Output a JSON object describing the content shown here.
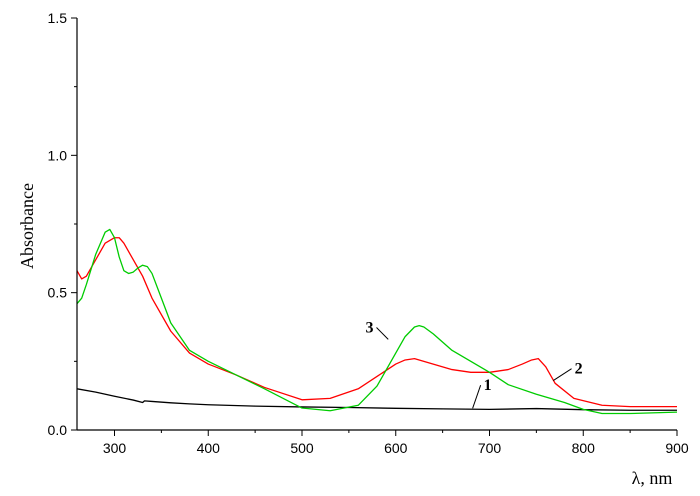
{
  "chart_data": {
    "type": "line",
    "title": "",
    "xlabel": "λ, nm",
    "ylabel": "Absorbance",
    "xlim": [
      260,
      900
    ],
    "ylim": [
      0.0,
      1.5
    ],
    "x_ticks": [
      300,
      400,
      500,
      600,
      700,
      800,
      900
    ],
    "x_tick_labels": [
      "300",
      "400",
      "500",
      "600",
      "700",
      "800",
      "900"
    ],
    "y_ticks": [
      0.0,
      0.5,
      1.0,
      1.5
    ],
    "y_tick_labels": [
      "0.0",
      "0.5",
      "1.0",
      "1.5"
    ],
    "grid": false,
    "legend": "none",
    "colors": {
      "axes": "#000000",
      "series_1": "#000000",
      "series_2": "#ff0000",
      "series_3": "#00cc00"
    },
    "series": [
      {
        "name": "1",
        "color": "#000000",
        "x": [
          260,
          280,
          300,
          320,
          330,
          332,
          340,
          360,
          380,
          400,
          450,
          500,
          550,
          600,
          650,
          700,
          750,
          800,
          850,
          900
        ],
        "y": [
          0.15,
          0.138,
          0.123,
          0.109,
          0.1,
          0.106,
          0.104,
          0.099,
          0.095,
          0.092,
          0.087,
          0.084,
          0.082,
          0.079,
          0.077,
          0.075,
          0.078,
          0.074,
          0.072,
          0.072
        ]
      },
      {
        "name": "2",
        "color": "#ff0000",
        "x": [
          260,
          265,
          270,
          280,
          290,
          300,
          305,
          310,
          320,
          330,
          340,
          360,
          380,
          400,
          430,
          460,
          500,
          530,
          560,
          580,
          600,
          610,
          620,
          640,
          660,
          680,
          700,
          720,
          735,
          745,
          752,
          760,
          770,
          790,
          820,
          850,
          900
        ],
        "y": [
          0.58,
          0.55,
          0.56,
          0.62,
          0.68,
          0.7,
          0.7,
          0.68,
          0.62,
          0.56,
          0.48,
          0.36,
          0.28,
          0.24,
          0.2,
          0.155,
          0.11,
          0.115,
          0.15,
          0.195,
          0.24,
          0.255,
          0.26,
          0.24,
          0.22,
          0.21,
          0.21,
          0.22,
          0.24,
          0.255,
          0.26,
          0.23,
          0.17,
          0.115,
          0.09,
          0.085,
          0.085
        ]
      },
      {
        "name": "3",
        "color": "#00cc00",
        "x": [
          260,
          265,
          270,
          280,
          290,
          295,
          300,
          305,
          310,
          315,
          320,
          325,
          330,
          335,
          340,
          350,
          360,
          380,
          400,
          430,
          460,
          500,
          530,
          560,
          580,
          600,
          610,
          620,
          625,
          630,
          640,
          660,
          680,
          700,
          720,
          750,
          780,
          800,
          820,
          850,
          900
        ],
        "y": [
          0.46,
          0.48,
          0.53,
          0.64,
          0.72,
          0.73,
          0.7,
          0.63,
          0.58,
          0.57,
          0.575,
          0.59,
          0.6,
          0.595,
          0.57,
          0.48,
          0.39,
          0.29,
          0.25,
          0.2,
          0.15,
          0.08,
          0.07,
          0.09,
          0.16,
          0.28,
          0.34,
          0.375,
          0.38,
          0.375,
          0.35,
          0.29,
          0.25,
          0.21,
          0.165,
          0.13,
          0.1,
          0.075,
          0.06,
          0.06,
          0.065
        ]
      }
    ],
    "annotations": [
      {
        "text": "1",
        "series": 0,
        "text_x": 698,
        "text_y": 0.145,
        "point_x": 682,
        "point_y": 0.079
      },
      {
        "text": "2",
        "series": 1,
        "text_x": 795,
        "text_y": 0.205,
        "point_x": 768,
        "point_y": 0.18
      },
      {
        "text": "3",
        "series": 2,
        "text_x": 572,
        "text_y": 0.355,
        "point_x": 592,
        "point_y": 0.33
      }
    ]
  }
}
